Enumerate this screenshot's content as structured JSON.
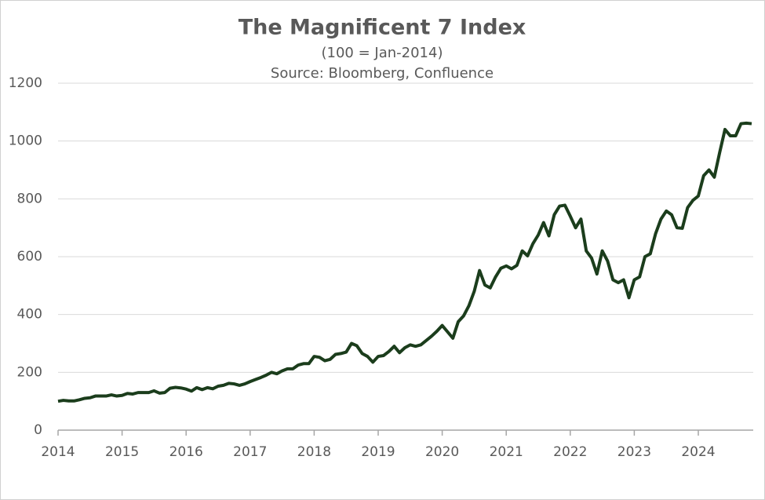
{
  "chart_data": {
    "type": "line",
    "title": "The Magnificent 7 Index",
    "subtitle": "(100 = Jan-2014)",
    "source": "Source: Bloomberg, Confluence",
    "categories": [
      "2014",
      null,
      null,
      null,
      null,
      null,
      null,
      null,
      null,
      null,
      null,
      null,
      "2015",
      null,
      null,
      null,
      null,
      null,
      null,
      null,
      null,
      null,
      null,
      null,
      "2016",
      null,
      null,
      null,
      null,
      null,
      null,
      null,
      null,
      null,
      null,
      null,
      "2017",
      null,
      null,
      null,
      null,
      null,
      null,
      null,
      null,
      null,
      null,
      null,
      "2018",
      null,
      null,
      null,
      null,
      null,
      null,
      null,
      null,
      null,
      null,
      null,
      "2019",
      null,
      null,
      null,
      null,
      null,
      null,
      null,
      null,
      null,
      null,
      null,
      "2020",
      null,
      null,
      null,
      null,
      null,
      null,
      null,
      null,
      null,
      null,
      null,
      "2021",
      null,
      null,
      null,
      null,
      null,
      null,
      null,
      null,
      null,
      null,
      null,
      "2022",
      null,
      null,
      null,
      null,
      null,
      null,
      null,
      null,
      null,
      null,
      null,
      "2023",
      null,
      null,
      null,
      null,
      null,
      null,
      null,
      null,
      null,
      null,
      null,
      "2024",
      null,
      null,
      null,
      null,
      null,
      null,
      null,
      null,
      null,
      null
    ],
    "series": [
      {
        "color": "#1b3d1c",
        "values": [
          100,
          103,
          101,
          101,
          105,
          110,
          112,
          118,
          118,
          118,
          122,
          118,
          120,
          127,
          125,
          130,
          130,
          130,
          136,
          128,
          130,
          145,
          148,
          146,
          142,
          135,
          147,
          140,
          147,
          143,
          152,
          155,
          162,
          160,
          155,
          160,
          168,
          175,
          182,
          190,
          200,
          195,
          205,
          212,
          212,
          225,
          230,
          230,
          255,
          252,
          240,
          245,
          262,
          265,
          270,
          300,
          292,
          265,
          255,
          235,
          255,
          258,
          272,
          290,
          268,
          285,
          295,
          290,
          295,
          310,
          325,
          342,
          362,
          340,
          318,
          375,
          395,
          430,
          480,
          552,
          502,
          492,
          530,
          560,
          568,
          558,
          570,
          620,
          603,
          645,
          675,
          718,
          672,
          745,
          775,
          778,
          740,
          700,
          730,
          620,
          595,
          540,
          620,
          585,
          520,
          510,
          520,
          458,
          520,
          530,
          600,
          610,
          680,
          730,
          758,
          745,
          700,
          698,
          770,
          795,
          810,
          880,
          900,
          875,
          960,
          1040,
          1018,
          1018,
          1060,
          1062,
          1060
        ]
      }
    ],
    "ylim": [
      0,
      1200
    ],
    "yticks": [
      0,
      200,
      400,
      600,
      800,
      1000,
      1200
    ],
    "grid": true
  }
}
